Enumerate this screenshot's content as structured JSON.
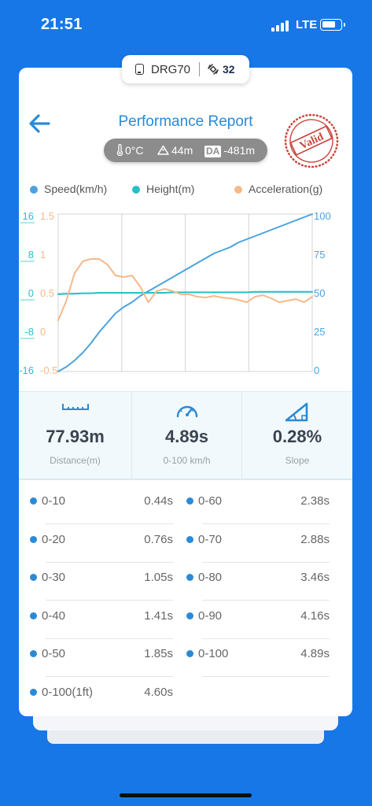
{
  "status": {
    "time": "21:51",
    "network": "LTE",
    "battery_level": 0.75
  },
  "device": {
    "name": "DRG70",
    "satellites": "32",
    "icon": "device-icon",
    "sat_icon": "satellite-icon"
  },
  "header": {
    "title": "Performance Report",
    "stamp": "Valid",
    "conditions": {
      "temperature": "0°C",
      "altitude": "44m",
      "da_label": "DA",
      "density_altitude": "-481m"
    }
  },
  "legend": [
    {
      "name": "Speed(km/h)",
      "color": "#4aa3df"
    },
    {
      "name": "Height(m)",
      "color": "#26c0c7"
    },
    {
      "name": "Acceleration(g)",
      "color": "#f6b98a"
    }
  ],
  "chart_data": {
    "type": "line",
    "grid": true,
    "y_axes": {
      "height": {
        "ticks": [
          "16",
          "8",
          "0",
          "-8",
          "-16"
        ],
        "range": [
          -16,
          16
        ],
        "color": "#26c0c7"
      },
      "acceleration": {
        "ticks": [
          "1.5",
          "1",
          "0.5",
          "0",
          "-0.5"
        ],
        "range": [
          -0.5,
          1.5
        ],
        "color": "#f6b98a"
      },
      "speed": {
        "ticks": [
          "100",
          "75",
          "50",
          "25",
          "0"
        ],
        "range": [
          0,
          100
        ],
        "color": "#4aa3df"
      }
    },
    "series": [
      {
        "name": "Speed(km/h)",
        "axis": "speed",
        "color": "#4aa3df",
        "values": [
          0,
          3,
          7,
          12,
          18,
          25,
          31,
          37,
          41,
          44,
          48,
          51,
          54,
          57,
          60,
          63,
          66,
          69,
          72,
          75,
          77,
          79,
          82,
          84,
          86,
          88,
          90,
          92,
          94,
          96,
          98,
          100
        ]
      },
      {
        "name": "Height(m)",
        "axis": "height",
        "color": "#26c0c7",
        "values": [
          -0.3,
          -0.2,
          -0.2,
          -0.1,
          -0.1,
          0,
          0,
          0,
          0,
          0,
          0,
          0,
          0,
          0,
          0.1,
          0.1,
          0.1,
          0.1,
          0.1,
          0.1,
          0.1,
          0.1,
          0.1,
          0.1,
          0.2,
          0.2,
          0.2,
          0.2,
          0.2,
          0.2,
          0.2,
          0.2
        ]
      },
      {
        "name": "Acceleration(g)",
        "axis": "acceleration",
        "color": "#f6b98a",
        "values": [
          0.15,
          0.4,
          0.75,
          0.9,
          0.93,
          0.93,
          0.86,
          0.72,
          0.7,
          0.72,
          0.58,
          0.38,
          0.52,
          0.55,
          0.52,
          0.48,
          0.48,
          0.45,
          0.44,
          0.46,
          0.44,
          0.43,
          0.41,
          0.38,
          0.45,
          0.47,
          0.43,
          0.38,
          0.4,
          0.42,
          0.38,
          0.45
        ]
      }
    ]
  },
  "stats": [
    {
      "value": "77.93m",
      "label": "Distance(m)",
      "icon": "ruler-icon"
    },
    {
      "value": "4.89s",
      "label": "0-100 km/h",
      "icon": "speedometer-icon"
    },
    {
      "value": "0.28%",
      "label": "Slope",
      "icon": "slope-icon"
    }
  ],
  "splits": [
    {
      "label": "0-10",
      "value": "0.44s"
    },
    {
      "label": "0-60",
      "value": "2.38s"
    },
    {
      "label": "0-20",
      "value": "0.76s"
    },
    {
      "label": "0-70",
      "value": "2.88s"
    },
    {
      "label": "0-30",
      "value": "1.05s"
    },
    {
      "label": "0-80",
      "value": "3.46s"
    },
    {
      "label": "0-40",
      "value": "1.41s"
    },
    {
      "label": "0-90",
      "value": "4.16s"
    },
    {
      "label": "0-50",
      "value": "1.85s"
    },
    {
      "label": "0-100",
      "value": "4.89s"
    },
    {
      "label": "0-100(1ft)",
      "value": "4.60s"
    }
  ]
}
